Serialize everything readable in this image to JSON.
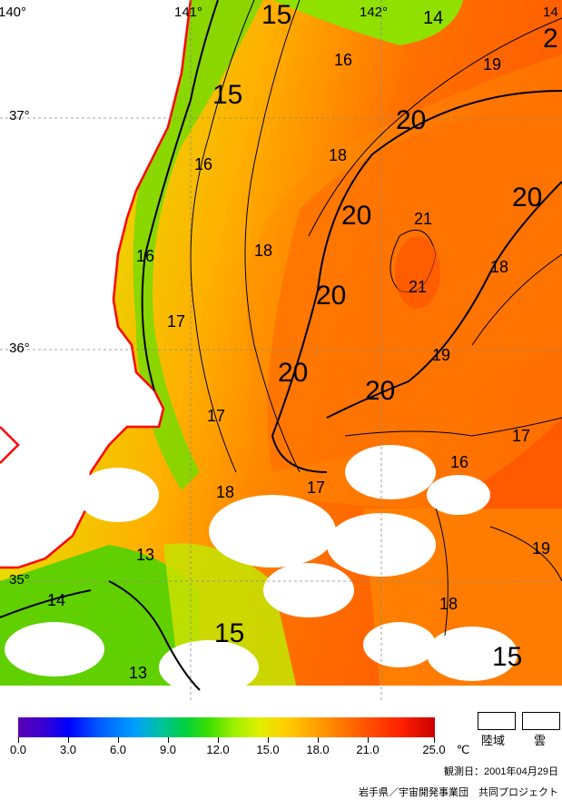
{
  "map": {
    "grid": {
      "lon_labels": [
        {
          "label": "140°"
        },
        {
          "label": "141°"
        },
        {
          "label": "142°"
        },
        {
          "label": "14"
        }
      ],
      "lat_labels": [
        {
          "label": "37°"
        },
        {
          "label": "36°"
        },
        {
          "label": "35°"
        }
      ]
    },
    "contour_labels": [
      {
        "text": "15"
      },
      {
        "text": "142°"
      },
      {
        "text": "14"
      },
      {
        "text": "16"
      },
      {
        "text": "19"
      },
      {
        "text": "2"
      },
      {
        "text": "15"
      },
      {
        "text": "20"
      },
      {
        "text": "37°"
      },
      {
        "text": "16"
      },
      {
        "text": "18"
      },
      {
        "text": "20"
      },
      {
        "text": "21"
      },
      {
        "text": "20"
      },
      {
        "text": "16"
      },
      {
        "text": "18"
      },
      {
        "text": "18"
      },
      {
        "text": "21"
      },
      {
        "text": "20"
      },
      {
        "text": "17"
      },
      {
        "text": "19"
      },
      {
        "text": "20"
      },
      {
        "text": "20"
      },
      {
        "text": "17"
      },
      {
        "text": "17"
      },
      {
        "text": "16"
      },
      {
        "text": "18"
      },
      {
        "text": "17"
      },
      {
        "text": "19"
      },
      {
        "text": "13"
      },
      {
        "text": "14"
      },
      {
        "text": "18"
      },
      {
        "text": "15"
      },
      {
        "text": "15"
      },
      {
        "text": "13"
      }
    ]
  },
  "colorbar": {
    "unit": "℃",
    "ticks": [
      {
        "label": "0.0"
      },
      {
        "label": "3.0"
      },
      {
        "label": "6.0"
      },
      {
        "label": "9.0"
      },
      {
        "label": "12.0"
      },
      {
        "label": "15.0"
      },
      {
        "label": "18.0"
      },
      {
        "label": "21.0"
      },
      {
        "label": "25.0"
      }
    ]
  },
  "legend": {
    "land_label": "陸域",
    "cloud_label": "雲"
  },
  "footer": {
    "observation_date": "観測日：2001年04月29日",
    "credit": "岩手県／宇宙開発事業団　共同プロジェクト"
  }
}
